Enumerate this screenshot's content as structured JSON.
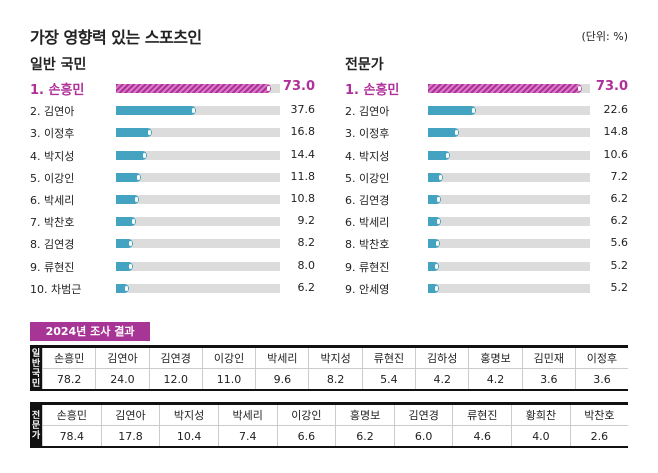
{
  "chart_data": [
    {
      "type": "bar",
      "title": "가장 영향력 있는 스포츠인",
      "unit": "(단위: %)",
      "group": "일반 국민",
      "xlim": [
        0,
        77
      ],
      "categories": [
        "1. 손흥민",
        "2. 김연아",
        "3. 이정후",
        "4. 박지성",
        "5. 이강인",
        "6. 박세리",
        "7. 박찬호",
        "8. 김연경",
        "9. 류현진",
        "10. 차범근"
      ],
      "values": [
        73.0,
        37.6,
        16.8,
        14.4,
        11.8,
        10.8,
        9.2,
        8.2,
        8.0,
        6.2
      ],
      "labels": [
        "73.0",
        "37.6",
        "16.8",
        "14.4",
        "11.8",
        "10.8",
        "9.2",
        "8.2",
        "8.0",
        "6.2"
      ]
    },
    {
      "type": "bar",
      "group": "전문가",
      "xlim": [
        0,
        77
      ],
      "categories": [
        "1. 손흥민",
        "2. 김연아",
        "3. 이정후",
        "4. 박지성",
        "5. 이강인",
        "6. 김연경",
        "6. 박세리",
        "8. 박찬호",
        "9. 류현진",
        "9. 안세영"
      ],
      "values": [
        73.0,
        22.6,
        14.8,
        10.6,
        7.2,
        6.2,
        6.2,
        5.6,
        5.2,
        5.2
      ],
      "labels": [
        "73.0",
        "22.6",
        "14.8",
        "10.6",
        "7.2",
        "6.2",
        "6.2",
        "5.6",
        "5.2",
        "5.2"
      ]
    },
    {
      "type": "table",
      "title": "2024년 조사 결과",
      "group": "일반국민",
      "names": [
        "손흥민",
        "김연아",
        "김연경",
        "이강인",
        "박세리",
        "박지성",
        "류현진",
        "김하성",
        "홍명보",
        "김민재",
        "이정후"
      ],
      "values": [
        "78.2",
        "24.0",
        "12.0",
        "11.0",
        "9.6",
        "8.2",
        "5.4",
        "4.2",
        "4.2",
        "3.6",
        "3.6"
      ]
    },
    {
      "type": "table",
      "group": "전문가",
      "names": [
        "손흥민",
        "김연아",
        "박지성",
        "박세리",
        "이강인",
        "홍명보",
        "김연경",
        "류현진",
        "황희찬",
        "박찬호"
      ],
      "values": [
        "78.4",
        "17.8",
        "10.4",
        "7.4",
        "6.6",
        "6.2",
        "6.0",
        "4.6",
        "4.0",
        "2.6"
      ]
    }
  ],
  "colors": {
    "accent": "#b0309a",
    "bar": "#43a3c0",
    "track": "#dcdcdc"
  }
}
